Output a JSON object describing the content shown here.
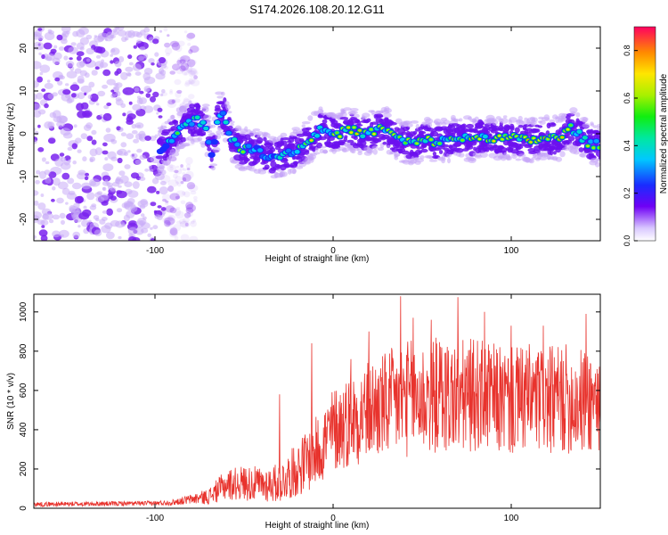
{
  "title": "S174.2026.108.20.12.G11",
  "colors": {
    "snr_line": "#e8332d",
    "track_core": "#6a00f0",
    "noise": "#b98cf5"
  },
  "chart_data": [
    {
      "type": "heatmap",
      "name": "spectrogram",
      "xlabel": "Height of straight line (km)",
      "ylabel": "Frequency (Hz)",
      "xlim": [
        -168,
        150
      ],
      "ylim": [
        -25,
        25
      ],
      "xticks": [
        -100,
        0,
        100
      ],
      "xtick_labels": [
        "-100",
        "0",
        "100"
      ],
      "yticks": [
        -20,
        -10,
        0,
        10,
        20
      ],
      "ytick_labels": [
        "-20",
        "-10",
        "0",
        "10",
        "20"
      ],
      "colorbar": {
        "label": "Normalized spectral amplitude",
        "range": [
          0.0,
          0.9
        ],
        "ticks": [
          0.0,
          0.2,
          0.4,
          0.6,
          0.8
        ],
        "tick_labels": [
          "0.0",
          "0.2",
          "0.4",
          "0.6",
          "0.8"
        ]
      },
      "noise_region_x": [
        -168,
        -95
      ],
      "track": {
        "x": [
          -97,
          -92,
          -87,
          -82,
          -77,
          -72,
          -68,
          -64,
          -61,
          -57,
          -52,
          -47,
          -42,
          -37,
          -32,
          -27,
          -22,
          -17,
          -12,
          -7,
          -2,
          3,
          8,
          13,
          18,
          23,
          28,
          33,
          38,
          43,
          48,
          53,
          58,
          63,
          68,
          73,
          78,
          83,
          88,
          93,
          98,
          103,
          108,
          113,
          118,
          123,
          128,
          133,
          138,
          143,
          148
        ],
        "freq": [
          -3.5,
          -1.5,
          0.5,
          2.5,
          3.5,
          2.0,
          -5.0,
          5.0,
          4.5,
          -1.5,
          -3.5,
          -3.5,
          -4.0,
          -5.0,
          -5.5,
          -4.5,
          -4.0,
          -3.0,
          -1.0,
          1.0,
          0.5,
          -0.5,
          1.5,
          0.5,
          0.0,
          0.5,
          1.5,
          0.0,
          -1.5,
          -2.0,
          -2.0,
          -1.5,
          -2.0,
          -1.5,
          -1.0,
          -1.0,
          -1.5,
          -0.5,
          -1.0,
          -1.0,
          -1.0,
          -1.0,
          -1.5,
          -1.5,
          -1.0,
          -1.0,
          -1.0,
          1.5,
          0.0,
          -2.5,
          -2.5
        ],
        "amplitude": [
          0.3,
          0.45,
          0.5,
          0.55,
          0.5,
          0.45,
          0.35,
          0.45,
          0.5,
          0.45,
          0.55,
          0.5,
          0.45,
          0.4,
          0.45,
          0.5,
          0.45,
          0.55,
          0.6,
          0.6,
          0.55,
          0.6,
          0.6,
          0.65,
          0.6,
          0.6,
          0.55,
          0.6,
          0.55,
          0.6,
          0.65,
          0.6,
          0.6,
          0.55,
          0.6,
          0.6,
          0.65,
          0.6,
          0.6,
          0.65,
          0.6,
          0.65,
          0.7,
          0.75,
          0.8,
          0.75,
          0.65,
          0.6,
          0.55,
          0.55,
          0.5
        ]
      }
    },
    {
      "type": "line",
      "name": "snr",
      "xlabel": "Height of straight line (km)",
      "ylabel": "SNR (10 * v/v)",
      "xlim": [
        -168,
        150
      ],
      "ylim": [
        0,
        1090
      ],
      "xticks": [
        -100,
        0,
        100
      ],
      "xtick_labels": [
        "-100",
        "0",
        "100"
      ],
      "yticks": [
        0,
        200,
        400,
        600,
        800,
        1000
      ],
      "ytick_labels": [
        "0",
        "200",
        "400",
        "600",
        "800",
        "1000"
      ],
      "envelope": {
        "x": [
          -168,
          -100,
          -90,
          -80,
          -70,
          -60,
          -50,
          -40,
          -30,
          -20,
          -10,
          0,
          10,
          20,
          30,
          40,
          50,
          60,
          70,
          80,
          90,
          100,
          110,
          120,
          130,
          140,
          150
        ],
        "mean": [
          20,
          25,
          30,
          45,
          60,
          120,
          130,
          120,
          130,
          200,
          280,
          400,
          450,
          500,
          520,
          560,
          560,
          580,
          560,
          580,
          560,
          540,
          560,
          540,
          560,
          540,
          560
        ],
        "spread": [
          12,
          12,
          15,
          25,
          40,
          80,
          90,
          90,
          100,
          140,
          180,
          220,
          240,
          260,
          280,
          300,
          300,
          300,
          300,
          290,
          280,
          280,
          280,
          280,
          280,
          280,
          280
        ]
      },
      "peaks": [
        {
          "x": -30,
          "y": 580
        },
        {
          "x": -12,
          "y": 840
        },
        {
          "x": 10,
          "y": 760
        },
        {
          "x": 20,
          "y": 900
        },
        {
          "x": 38,
          "y": 1080
        },
        {
          "x": 45,
          "y": 970
        },
        {
          "x": 55,
          "y": 960
        },
        {
          "x": 70,
          "y": 1075
        },
        {
          "x": 85,
          "y": 1000
        },
        {
          "x": 100,
          "y": 930
        },
        {
          "x": 118,
          "y": 930
        },
        {
          "x": 142,
          "y": 990
        }
      ]
    }
  ]
}
